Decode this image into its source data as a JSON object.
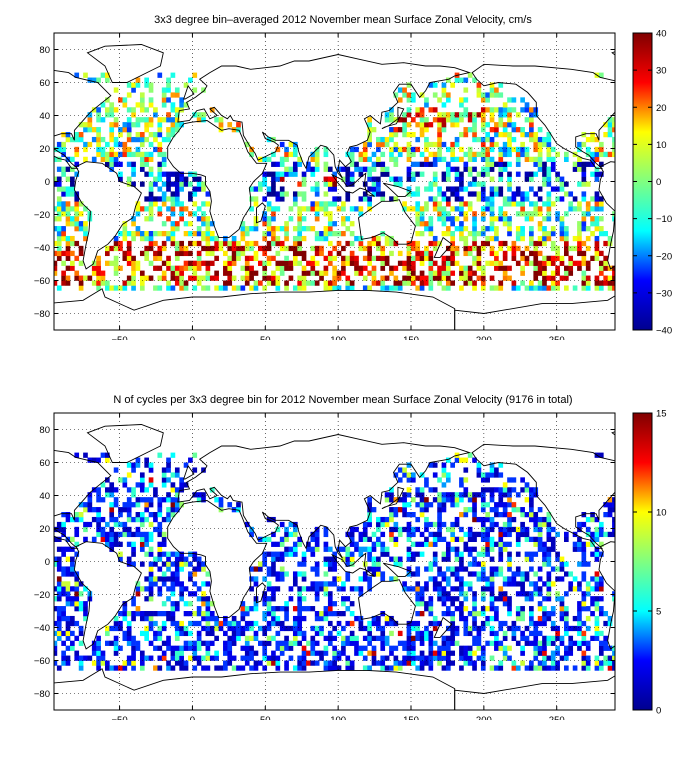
{
  "figures": [
    {
      "id": "top",
      "title": "3x3 degree bin–averaged 2012 November mean Surface Zonal Velocity, cm/s",
      "colorbar_ticks": [
        "40",
        "30",
        "20",
        "10",
        "0",
        "−10",
        "−20",
        "−30",
        "−40"
      ],
      "y_ticks": [
        "80",
        "60",
        "40",
        "20",
        "0",
        "−20",
        "−40",
        "−60",
        "−80"
      ],
      "x_ticks": [
        "−50",
        "0",
        "50",
        "100",
        "150",
        "200",
        "250"
      ]
    },
    {
      "id": "bottom",
      "title": "N of cycles per 3x3 degree bin for 2012 November mean Surface Zonal Velocity (9176 in total)",
      "colorbar_ticks": [
        "15",
        "10",
        "5",
        "0"
      ],
      "y_ticks": [
        "80",
        "60",
        "40",
        "20",
        "0",
        "−20",
        "−40",
        "−60",
        "−80"
      ],
      "x_ticks": [
        "−50",
        "0",
        "50",
        "100",
        "150",
        "200",
        "250"
      ]
    }
  ],
  "chart_data": [
    {
      "type": "heatmap",
      "title": "3x3 degree bin–averaged 2012 November mean Surface Zonal Velocity, cm/s",
      "bin_size_deg": 3,
      "xlim": [
        -95,
        290
      ],
      "ylim": [
        -90,
        90
      ],
      "x_ticks": [
        -50,
        0,
        50,
        100,
        150,
        200,
        250
      ],
      "y_ticks": [
        80,
        60,
        40,
        20,
        0,
        -20,
        -40,
        -60,
        -80
      ],
      "grid": "dotted",
      "colorbar": {
        "colormap": "jet",
        "range": [
          -40,
          40
        ],
        "ticks": [
          40,
          30,
          20,
          10,
          0,
          -10,
          -20,
          -30,
          -40
        ],
        "placement": "right"
      },
      "colormap_stops": [
        "#00008f",
        "#0000ff",
        "#00ffff",
        "#80ff80",
        "#ffff00",
        "#ff0000",
        "#800000"
      ],
      "units": "cm/s",
      "notes": "Noisy bin field; approximate regional structure: mixed signs nearly everywhere, strong eastward (red) bands in the Southern Ocean near 40-60S, westward (blue) bands near the equator in the Pacific and Indian Oceans."
    },
    {
      "type": "heatmap",
      "title": "N of cycles per 3x3 degree bin for 2012 November mean Surface Zonal Velocity (9176 in total)",
      "bin_size_deg": 3,
      "xlim": [
        -95,
        290
      ],
      "ylim": [
        -90,
        90
      ],
      "x_ticks": [
        -50,
        0,
        50,
        100,
        150,
        200,
        250
      ],
      "y_ticks": [
        80,
        60,
        40,
        20,
        0,
        -20,
        -40,
        -60,
        -80
      ],
      "grid": "dotted",
      "colorbar": {
        "colormap": "jet",
        "range": [
          0,
          15
        ],
        "ticks": [
          15,
          10,
          5,
          0
        ],
        "placement": "right"
      },
      "colormap_stops": [
        "#00008f",
        "#0000ff",
        "#00ffff",
        "#80ff80",
        "#ffff00",
        "#ff0000",
        "#800000"
      ],
      "total_cycles": 9176,
      "notes": "Most bins hold 1-4 cycles (blue); a few bins reach 10-15 (red), e.g. near Japan and the Arabian Sea."
    }
  ]
}
